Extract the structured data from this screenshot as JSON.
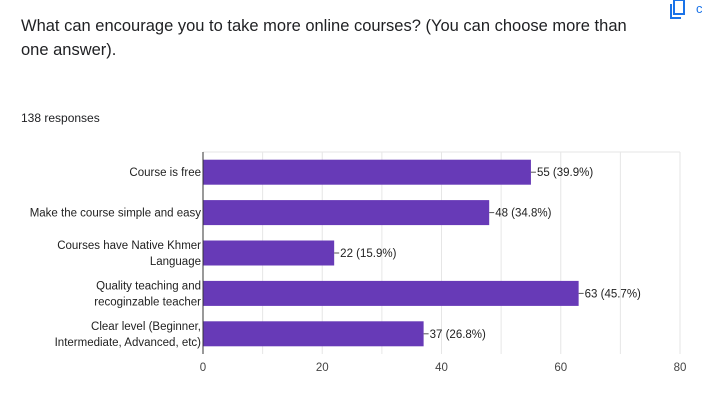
{
  "question": {
    "title": "What can encourage you to take more online courses? (You can choose more than one answer)."
  },
  "responses_label": "138 responses",
  "icons": {
    "copy": "copy-icon"
  },
  "colors": {
    "bar": "#673ab7",
    "grid": "#e6e6e6",
    "axis": "#333333"
  },
  "chart_data": {
    "type": "bar",
    "orientation": "horizontal",
    "categories": [
      [
        "Course is free"
      ],
      [
        "Make the course simple and easy"
      ],
      [
        "Courses have Native Khmer",
        "Language"
      ],
      [
        "Quality teaching and",
        "recoginzable teacher"
      ],
      [
        "Clear level (Beginner,",
        "Intermediate, Advanced, etc)"
      ]
    ],
    "values": [
      55,
      48,
      22,
      63,
      37
    ],
    "data_labels": [
      "55 (39.9%)",
      "48 (34.8%)",
      "22 (15.9%)",
      "63 (45.7%)",
      "37 (26.8%)"
    ],
    "xlim": [
      0,
      80
    ],
    "xticks": [
      0,
      20,
      40,
      60,
      80
    ],
    "grid": true,
    "legend": "none"
  }
}
